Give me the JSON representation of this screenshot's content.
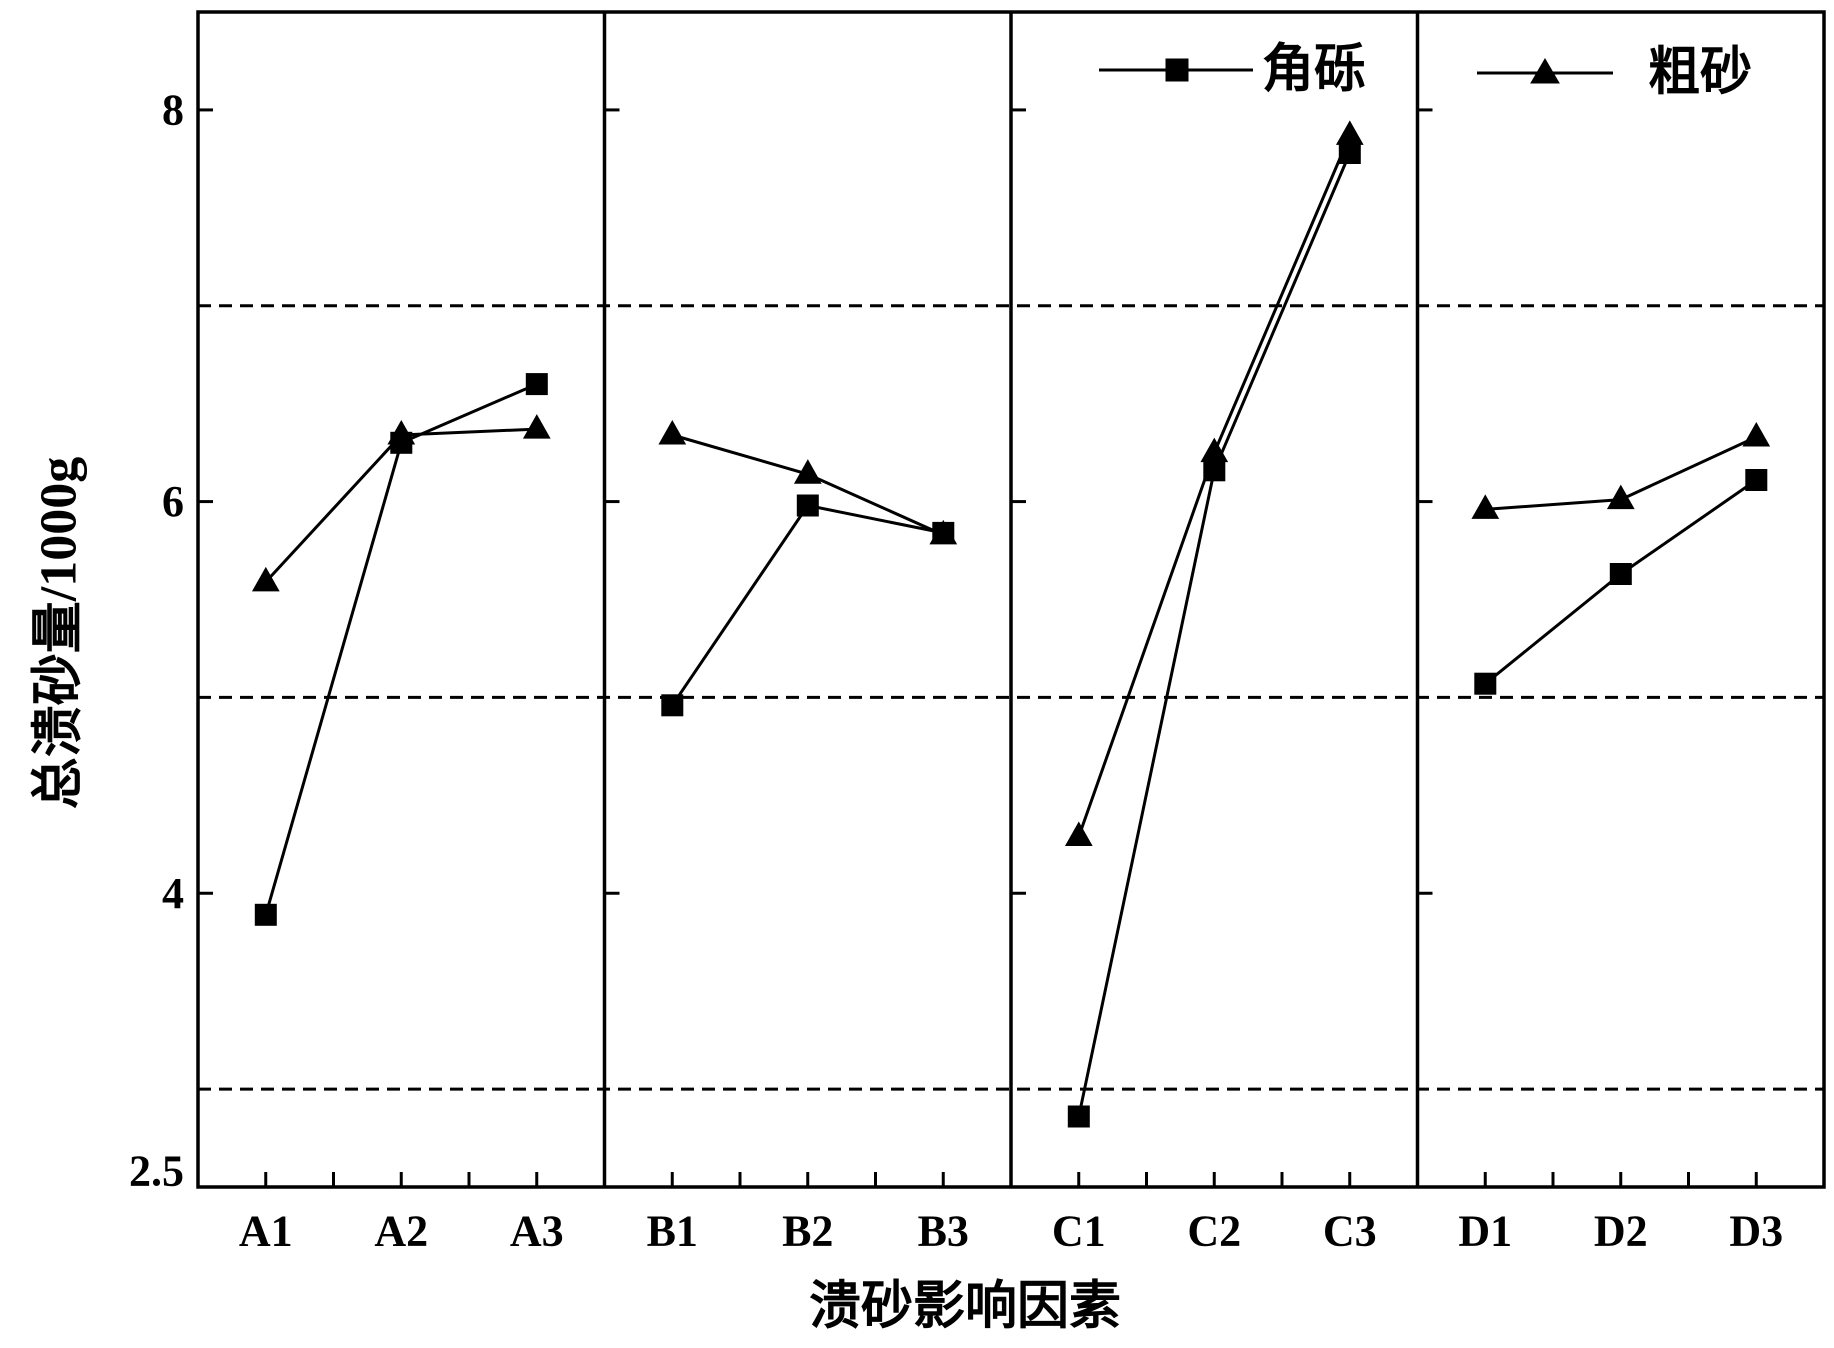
{
  "chart_data": {
    "type": "line",
    "xlabel": "溃砂影响因素",
    "ylabel": "总溃砂量/1000g",
    "ylim": [
      2.5,
      8.5
    ],
    "yticks": [
      2.5,
      4,
      6,
      8
    ],
    "ytick_labels": [
      "2.5",
      "4",
      "6",
      "8"
    ],
    "dashed_hlines": [
      3,
      5,
      7
    ],
    "groups": [
      [
        "A1",
        "A2",
        "A3"
      ],
      [
        "B1",
        "B2",
        "B3"
      ],
      [
        "C1",
        "C2",
        "C3"
      ],
      [
        "D1",
        "D2",
        "D3"
      ]
    ],
    "series": [
      {
        "name": "角砾",
        "marker": "filled-square",
        "color": "#000000",
        "values": [
          [
            3.89,
            6.3,
            6.6
          ],
          [
            4.96,
            5.98,
            5.84
          ],
          [
            2.86,
            6.16,
            7.78
          ],
          [
            5.07,
            5.63,
            6.11
          ]
        ]
      },
      {
        "name": "粗砂",
        "marker": "filled-triangle",
        "color": "#000000",
        "values": [
          [
            5.59,
            6.34,
            6.37
          ],
          [
            6.34,
            6.14,
            5.83
          ],
          [
            4.29,
            6.25,
            7.87
          ],
          [
            5.96,
            6.01,
            6.33
          ]
        ]
      }
    ],
    "legend": "top-right",
    "grid": false
  }
}
